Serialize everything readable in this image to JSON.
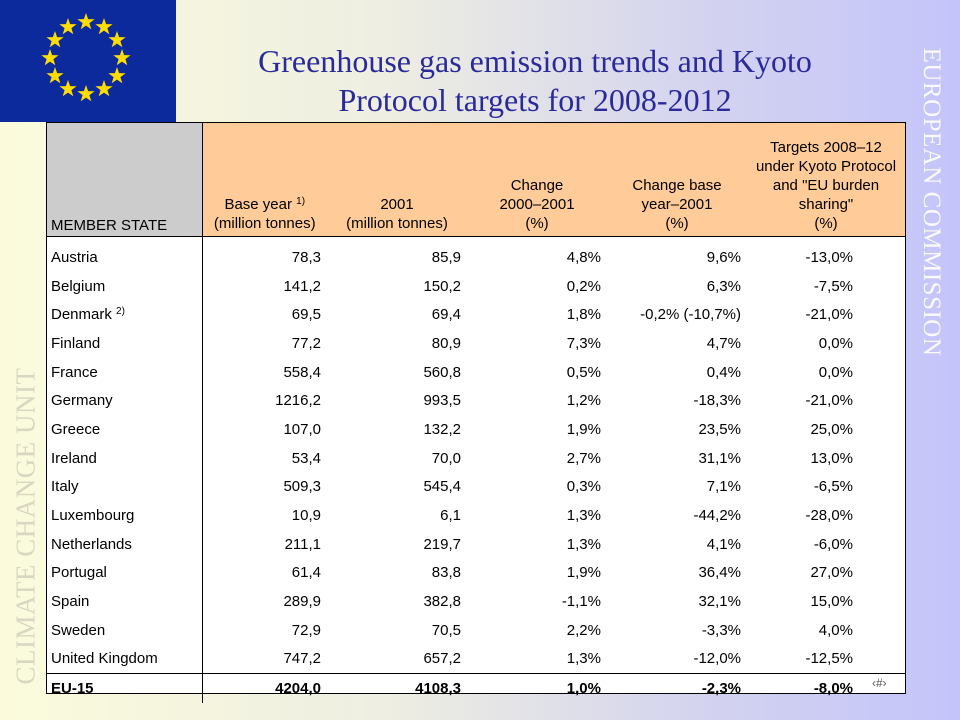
{
  "title_line1": "Greenhouse gas emission trends and Kyoto",
  "title_line2": "Protocol targets for 2008-2012",
  "side_right": "EUROPEAN COMMISSION",
  "side_left": "CLIMATE CHANGE UNIT",
  "slide_number": "‹#›",
  "colors": {
    "header_grey": "#cccccc",
    "header_peach": "#ffcc99",
    "title": "#2a2a9a",
    "flag": "#0d2a9c",
    "stars": "#ffdd00"
  },
  "table": {
    "headers": {
      "member": "MEMBER STATE",
      "base_year": "Base year",
      "base_year_note": "1)",
      "base_year_unit": "(million tonnes)",
      "y2001": "2001",
      "y2001_unit": "(million tonnes)",
      "change_l1": "Change",
      "change_l2": "2000–2001",
      "change_unit": "(%)",
      "cby_l1": "Change base",
      "cby_l2": "year–2001",
      "cby_unit": "(%)",
      "targets_l1": "Targets 2008–12",
      "targets_l2": "under Kyoto Protocol",
      "targets_l3": "and \"EU burden",
      "targets_l4": "sharing\"",
      "targets_unit": "(%)"
    },
    "rows": [
      {
        "name": "Austria",
        "note": "",
        "base": "78,3",
        "y2001": "85,9",
        "change": "4,8%",
        "cby": "9,6%",
        "target": "-13,0%"
      },
      {
        "name": "Belgium",
        "note": "",
        "base": "141,2",
        "y2001": "150,2",
        "change": "0,2%",
        "cby": "6,3%",
        "target": "-7,5%"
      },
      {
        "name": "Denmark",
        "note": "2)",
        "base": "69,5",
        "y2001": "69,4",
        "change": "1,8%",
        "cby": "-0,2% (-10,7%)",
        "target": "-21,0%"
      },
      {
        "name": "Finland",
        "note": "",
        "base": "77,2",
        "y2001": "80,9",
        "change": "7,3%",
        "cby": "4,7%",
        "target": "0,0%"
      },
      {
        "name": "France",
        "note": "",
        "base": "558,4",
        "y2001": "560,8",
        "change": "0,5%",
        "cby": "0,4%",
        "target": "0,0%"
      },
      {
        "name": "Germany",
        "note": "",
        "base": "1216,2",
        "y2001": "993,5",
        "change": "1,2%",
        "cby": "-18,3%",
        "target": "-21,0%"
      },
      {
        "name": "Greece",
        "note": "",
        "base": "107,0",
        "y2001": "132,2",
        "change": "1,9%",
        "cby": "23,5%",
        "target": "25,0%"
      },
      {
        "name": "Ireland",
        "note": "",
        "base": "53,4",
        "y2001": "70,0",
        "change": "2,7%",
        "cby": "31,1%",
        "target": "13,0%"
      },
      {
        "name": "Italy",
        "note": "",
        "base": "509,3",
        "y2001": "545,4",
        "change": "0,3%",
        "cby": "7,1%",
        "target": "-6,5%"
      },
      {
        "name": "Luxembourg",
        "note": "",
        "base": "10,9",
        "y2001": "6,1",
        "change": "1,3%",
        "cby": "-44,2%",
        "target": "-28,0%"
      },
      {
        "name": "Netherlands",
        "note": "",
        "base": "211,1",
        "y2001": "219,7",
        "change": "1,3%",
        "cby": "4,1%",
        "target": "-6,0%"
      },
      {
        "name": "Portugal",
        "note": "",
        "base": "61,4",
        "y2001": "83,8",
        "change": "1,9%",
        "cby": "36,4%",
        "target": "27,0%"
      },
      {
        "name": "Spain",
        "note": "",
        "base": "289,9",
        "y2001": "382,8",
        "change": "-1,1%",
        "cby": "32,1%",
        "target": "15,0%"
      },
      {
        "name": "Sweden",
        "note": "",
        "base": "72,9",
        "y2001": "70,5",
        "change": "2,2%",
        "cby": "-3,3%",
        "target": "4,0%"
      },
      {
        "name": "United Kingdom",
        "note": "",
        "base": "747,2",
        "y2001": "657,2",
        "change": "1,3%",
        "cby": "-12,0%",
        "target": "-12,5%"
      }
    ],
    "total": {
      "name": "EU-15",
      "base": "4204,0",
      "y2001": "4108,3",
      "change": "1,0%",
      "cby": "-2,3%",
      "target": "-8,0%"
    }
  }
}
